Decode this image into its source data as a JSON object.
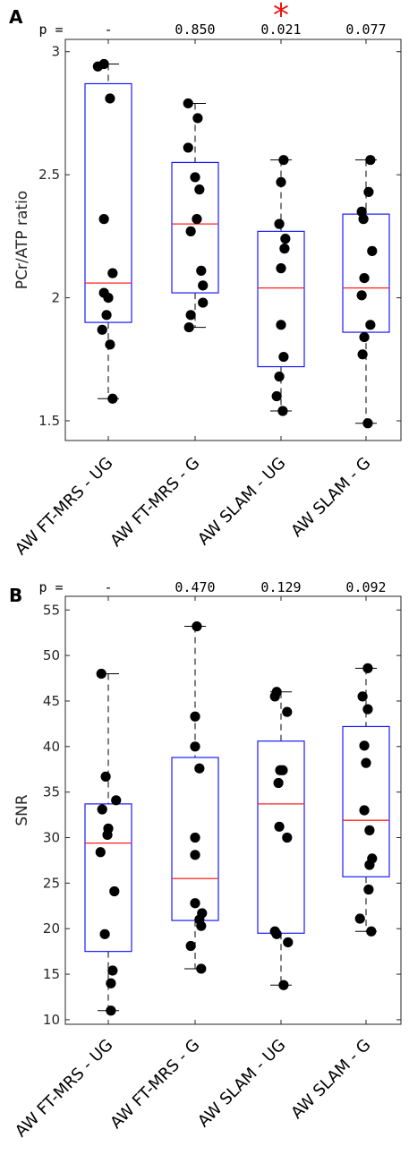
{
  "chart_data": [
    {
      "type": "box",
      "panel_label": "A",
      "ylabel": "PCr/ATP ratio",
      "ylim": [
        1.42,
        3.05
      ],
      "yticks": [
        1.5,
        2,
        2.5,
        3
      ],
      "ytick_labels": [
        "1.5",
        "2",
        "2.5",
        "3"
      ],
      "p_prefix": "p =",
      "significance_marker": "*",
      "categories": [
        "AW FT-MRS - UG",
        "AW FT-MRS - G",
        "AW SLAM - UG",
        "AW SLAM - G"
      ],
      "p_values": [
        "-",
        "0.850",
        "0.021",
        "0.077"
      ],
      "significant": [
        false,
        false,
        true,
        false
      ],
      "boxes": [
        {
          "whisker_low": 1.59,
          "q1": 1.9,
          "median": 2.06,
          "q3": 2.87,
          "whisker_high": 2.95
        },
        {
          "whisker_low": 1.88,
          "q1": 2.02,
          "median": 2.3,
          "q3": 2.55,
          "whisker_high": 2.79
        },
        {
          "whisker_low": 1.54,
          "q1": 1.72,
          "median": 2.04,
          "q3": 2.27,
          "whisker_high": 2.56
        },
        {
          "whisker_low": 1.49,
          "q1": 1.86,
          "median": 2.04,
          "q3": 2.34,
          "whisker_high": 2.56
        }
      ],
      "points": [
        [
          {
            "j": -0.05,
            "y": 2.95
          },
          {
            "j": -0.12,
            "y": 2.94
          },
          {
            "j": 0.02,
            "y": 2.81
          },
          {
            "j": -0.05,
            "y": 2.32
          },
          {
            "j": 0.05,
            "y": 2.1
          },
          {
            "j": -0.05,
            "y": 2.02
          },
          {
            "j": 0.0,
            "y": 2.0
          },
          {
            "j": -0.02,
            "y": 1.93
          },
          {
            "j": -0.07,
            "y": 1.87
          },
          {
            "j": 0.02,
            "y": 1.81
          },
          {
            "j": 0.05,
            "y": 1.59
          }
        ],
        [
          {
            "j": -0.08,
            "y": 2.79
          },
          {
            "j": 0.03,
            "y": 2.73
          },
          {
            "j": -0.08,
            "y": 2.61
          },
          {
            "j": 0.0,
            "y": 2.49
          },
          {
            "j": 0.05,
            "y": 2.44
          },
          {
            "j": 0.02,
            "y": 2.32
          },
          {
            "j": -0.05,
            "y": 2.27
          },
          {
            "j": 0.07,
            "y": 2.11
          },
          {
            "j": 0.09,
            "y": 2.05
          },
          {
            "j": 0.09,
            "y": 1.98
          },
          {
            "j": -0.05,
            "y": 1.93
          },
          {
            "j": -0.07,
            "y": 1.88
          }
        ],
        [
          {
            "j": 0.03,
            "y": 2.56
          },
          {
            "j": 0.0,
            "y": 2.47
          },
          {
            "j": -0.02,
            "y": 2.3
          },
          {
            "j": 0.05,
            "y": 2.24
          },
          {
            "j": 0.04,
            "y": 2.2
          },
          {
            "j": 0.0,
            "y": 2.12
          },
          {
            "j": 0.0,
            "y": 1.89
          },
          {
            "j": 0.03,
            "y": 1.76
          },
          {
            "j": -0.02,
            "y": 1.68
          },
          {
            "j": -0.05,
            "y": 1.6
          },
          {
            "j": 0.02,
            "y": 1.54
          }
        ],
        [
          {
            "j": 0.05,
            "y": 2.56
          },
          {
            "j": 0.03,
            "y": 2.43
          },
          {
            "j": -0.05,
            "y": 2.35
          },
          {
            "j": -0.03,
            "y": 2.32
          },
          {
            "j": 0.07,
            "y": 2.19
          },
          {
            "j": -0.02,
            "y": 2.08
          },
          {
            "j": -0.05,
            "y": 2.01
          },
          {
            "j": 0.05,
            "y": 1.89
          },
          {
            "j": -0.02,
            "y": 1.84
          },
          {
            "j": -0.04,
            "y": 1.77
          },
          {
            "j": 0.02,
            "y": 1.49
          }
        ]
      ]
    },
    {
      "type": "box",
      "panel_label": "B",
      "ylabel": "SNR",
      "ylim": [
        9.5,
        56.5
      ],
      "yticks": [
        10,
        15,
        20,
        25,
        30,
        35,
        40,
        45,
        50,
        55
      ],
      "ytick_labels": [
        "10",
        "15",
        "20",
        "25",
        "30",
        "35",
        "40",
        "45",
        "50",
        "55"
      ],
      "p_prefix": "p =",
      "significance_marker": "",
      "categories": [
        "AW FT-MRS - UG",
        "AW FT-MRS - G",
        "AW SLAM - UG",
        "AW SLAM - G"
      ],
      "p_values": [
        "-",
        "0.470",
        "0.129",
        "0.092"
      ],
      "significant": [
        false,
        false,
        false,
        false
      ],
      "boxes": [
        {
          "whisker_low": 11.0,
          "q1": 17.5,
          "median": 29.4,
          "q3": 33.7,
          "whisker_high": 48.0
        },
        {
          "whisker_low": 15.6,
          "q1": 20.9,
          "median": 25.5,
          "q3": 38.8,
          "whisker_high": 53.2
        },
        {
          "whisker_low": 13.8,
          "q1": 19.5,
          "median": 33.7,
          "q3": 40.6,
          "whisker_high": 46.0
        },
        {
          "whisker_low": 19.7,
          "q1": 25.7,
          "median": 31.9,
          "q3": 42.2,
          "whisker_high": 48.6
        }
      ],
      "points": [
        [
          {
            "j": -0.08,
            "y": 48.0
          },
          {
            "j": -0.03,
            "y": 36.7
          },
          {
            "j": 0.09,
            "y": 34.1
          },
          {
            "j": -0.07,
            "y": 33.1
          },
          {
            "j": 0.0,
            "y": 31.0
          },
          {
            "j": -0.01,
            "y": 30.3
          },
          {
            "j": -0.09,
            "y": 28.4
          },
          {
            "j": 0.07,
            "y": 24.1
          },
          {
            "j": -0.04,
            "y": 19.4
          },
          {
            "j": 0.05,
            "y": 15.4
          },
          {
            "j": 0.03,
            "y": 14.0
          },
          {
            "j": 0.03,
            "y": 11.0
          }
        ],
        [
          {
            "j": 0.02,
            "y": 53.2
          },
          {
            "j": 0.0,
            "y": 43.3
          },
          {
            "j": 0.0,
            "y": 40.0
          },
          {
            "j": 0.05,
            "y": 37.6
          },
          {
            "j": 0.0,
            "y": 30.0
          },
          {
            "j": 0.0,
            "y": 28.1
          },
          {
            "j": 0.0,
            "y": 22.8
          },
          {
            "j": 0.08,
            "y": 21.7
          },
          {
            "j": 0.05,
            "y": 21.0
          },
          {
            "j": 0.07,
            "y": 20.3
          },
          {
            "j": -0.05,
            "y": 18.1
          },
          {
            "j": 0.07,
            "y": 15.6
          }
        ],
        [
          {
            "j": -0.05,
            "y": 46.0
          },
          {
            "j": -0.07,
            "y": 45.5
          },
          {
            "j": 0.07,
            "y": 43.8
          },
          {
            "j": -0.01,
            "y": 37.4
          },
          {
            "j": 0.02,
            "y": 37.4
          },
          {
            "j": -0.03,
            "y": 36.0
          },
          {
            "j": -0.02,
            "y": 31.2
          },
          {
            "j": 0.07,
            "y": 30.0
          },
          {
            "j": -0.07,
            "y": 19.7
          },
          {
            "j": -0.05,
            "y": 19.4
          },
          {
            "j": 0.08,
            "y": 18.5
          },
          {
            "j": 0.03,
            "y": 13.8
          }
        ],
        [
          {
            "j": 0.02,
            "y": 48.6
          },
          {
            "j": -0.04,
            "y": 45.5
          },
          {
            "j": 0.02,
            "y": 44.1
          },
          {
            "j": -0.02,
            "y": 40.1
          },
          {
            "j": 0.0,
            "y": 38.2
          },
          {
            "j": -0.02,
            "y": 33.0
          },
          {
            "j": 0.04,
            "y": 30.8
          },
          {
            "j": 0.07,
            "y": 27.7
          },
          {
            "j": 0.04,
            "y": 27.0
          },
          {
            "j": 0.03,
            "y": 24.3
          },
          {
            "j": -0.07,
            "y": 21.1
          },
          {
            "j": 0.06,
            "y": 19.7
          }
        ]
      ]
    }
  ],
  "colors": {
    "box": "#1a1aff",
    "median": "#ff2020",
    "whisker": "#000000",
    "point": "#000000",
    "significance": "#ee1111",
    "axis": "#262626"
  }
}
